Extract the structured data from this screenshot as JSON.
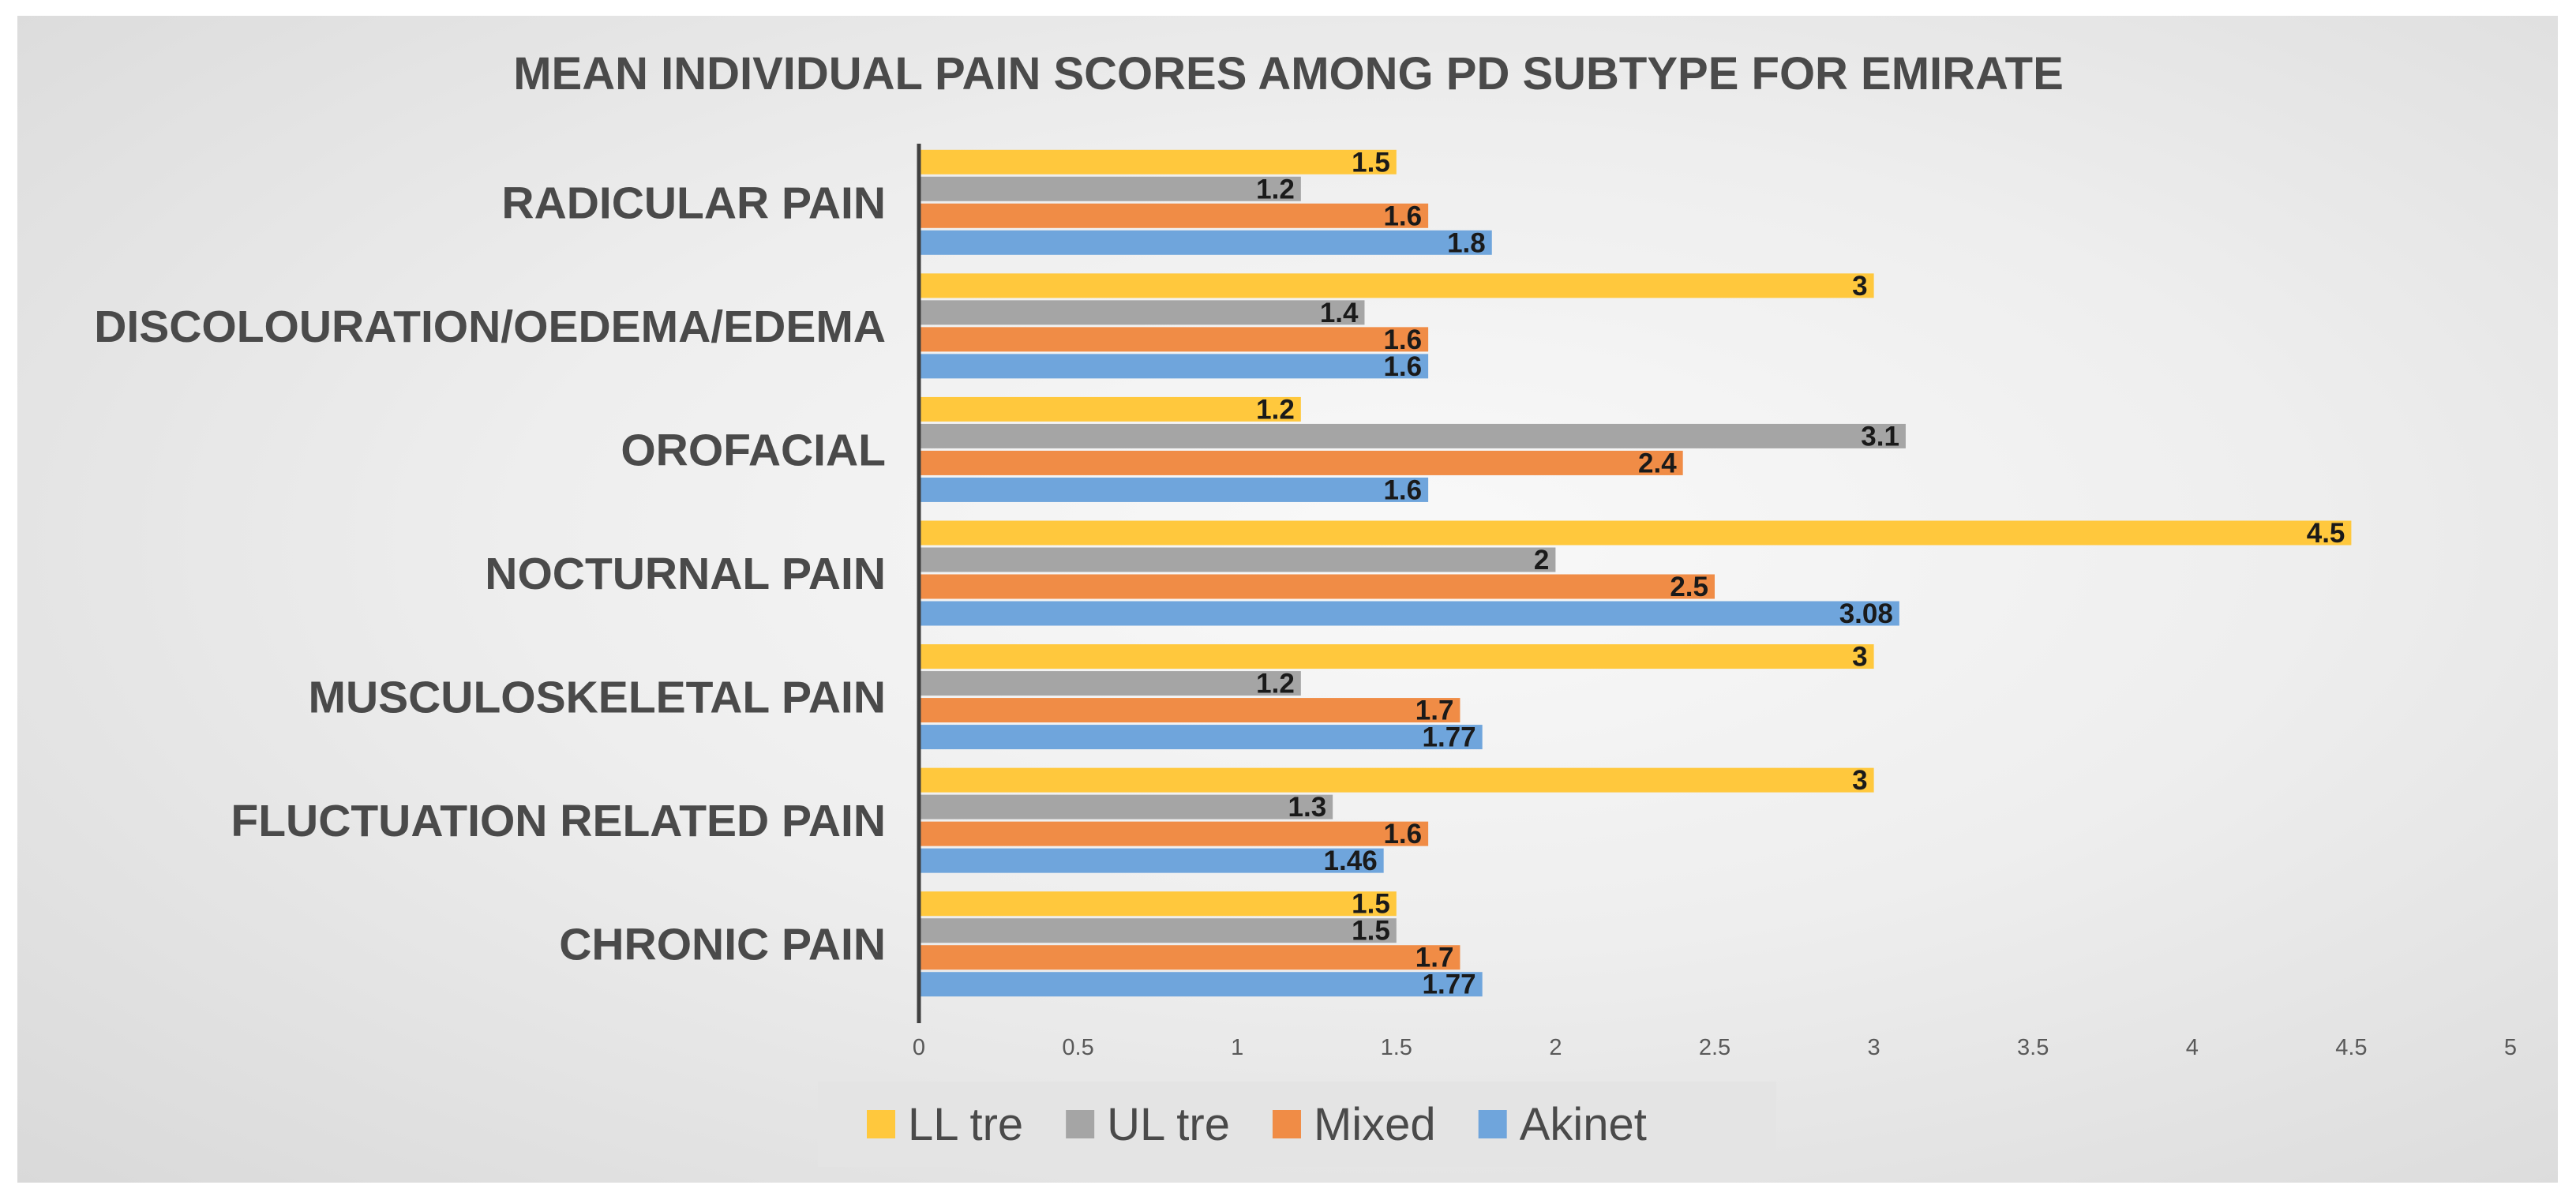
{
  "chart_data": {
    "type": "bar",
    "orientation": "horizontal",
    "title": "MEAN INDIVIDUAL PAIN SCORES AMONG PD SUBTYPE FOR EMIRATE",
    "categories": [
      "RADICULAR PAIN",
      "DISCOLOURATION/OEDEMA/EDEMA",
      "OROFACIAL",
      "NOCTURNAL PAIN",
      "MUSCULOSKELETAL PAIN",
      "FLUCTUATION RELATED PAIN",
      "CHRONIC PAIN"
    ],
    "series": [
      {
        "name": "LL tre",
        "color": "#FFC83D",
        "values": [
          1.5,
          3,
          1.2,
          4.5,
          3,
          3,
          1.5
        ]
      },
      {
        "name": "UL tre",
        "color": "#A5A5A5",
        "values": [
          1.2,
          1.4,
          3.1,
          2,
          1.2,
          1.3,
          1.5
        ]
      },
      {
        "name": "Mixed",
        "color": "#F08C46",
        "values": [
          1.6,
          1.6,
          2.4,
          2.5,
          1.7,
          1.6,
          1.7
        ]
      },
      {
        "name": "Akinet",
        "color": "#6FA5DC",
        "values": [
          1.8,
          1.6,
          1.6,
          3.08,
          1.77,
          1.46,
          1.77
        ]
      }
    ],
    "x_ticks": [
      "0",
      "0.5",
      "1",
      "1.5",
      "2",
      "2.5",
      "3",
      "3.5",
      "4",
      "4.5",
      "5"
    ],
    "xlim": [
      0,
      5
    ],
    "xlabel": "",
    "ylabel": "",
    "grid": false,
    "legend_position": "bottom"
  }
}
